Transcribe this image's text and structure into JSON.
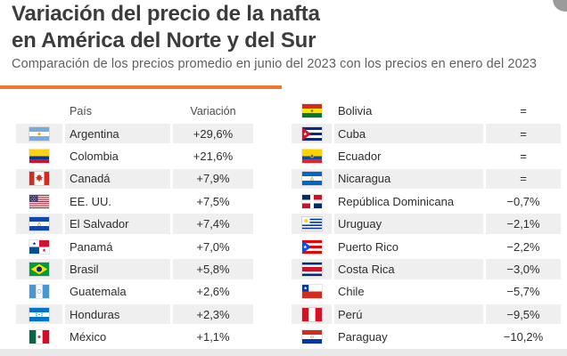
{
  "page": {
    "title_line1": "Variación del precio de la nafta",
    "title_line2": "en América del Norte y del Sur",
    "subtitle": "Comparación de los precios promedio en junio del 2023 con los precios en enero del 2023",
    "accent_color": "#F0772E"
  },
  "tables": {
    "left": {
      "columns": {
        "country": "País",
        "variation": "Variación"
      },
      "rows": [
        {
          "country": "Argentina",
          "variation": "+29,6%",
          "flag": "argentina"
        },
        {
          "country": "Colombia",
          "variation": "+21,6%",
          "flag": "colombia"
        },
        {
          "country": "Canadá",
          "variation": "+7,9%",
          "flag": "canada"
        },
        {
          "country": "EE. UU.",
          "variation": "+7,5%",
          "flag": "usa"
        },
        {
          "country": "El Salvador",
          "variation": "+7,4%",
          "flag": "el_salvador"
        },
        {
          "country": "Panamá",
          "variation": "+7,0%",
          "flag": "panama"
        },
        {
          "country": "Brasil",
          "variation": "+5,8%",
          "flag": "brasil"
        },
        {
          "country": "Guatemala",
          "variation": "+2,6%",
          "flag": "guatemala"
        },
        {
          "country": "Honduras",
          "variation": "+2,3%",
          "flag": "honduras"
        },
        {
          "country": "México",
          "variation": "+1,1%",
          "flag": "mexico"
        }
      ]
    },
    "right": {
      "rows": [
        {
          "country": "Bolivia",
          "variation": "=",
          "flag": "bolivia"
        },
        {
          "country": "Cuba",
          "variation": "=",
          "flag": "cuba"
        },
        {
          "country": "Ecuador",
          "variation": "=",
          "flag": "ecuador"
        },
        {
          "country": "Nicaragua",
          "variation": "=",
          "flag": "nicaragua"
        },
        {
          "country": "República Dominicana",
          "variation": "−0,7%",
          "flag": "dominicana"
        },
        {
          "country": "Uruguay",
          "variation": "−2,1%",
          "flag": "uruguay"
        },
        {
          "country": "Puerto Rico",
          "variation": "−2,2%",
          "flag": "puerto_rico"
        },
        {
          "country": "Costa Rica",
          "variation": "−3,0%",
          "flag": "costa_rica"
        },
        {
          "country": "Chile",
          "variation": "−5,7%",
          "flag": "chile"
        },
        {
          "country": "Perú",
          "variation": "−9,5%",
          "flag": "peru"
        },
        {
          "country": "Paraguay",
          "variation": "−10,2%",
          "flag": "paraguay"
        }
      ]
    }
  },
  "chart_data": {
    "type": "table",
    "title": "Variación del precio de la nafta en América del Norte y del Sur",
    "subtitle": "Comparación de los precios promedio en junio del 2023 con los precios en enero del 2023",
    "columns": [
      "País",
      "Variación"
    ],
    "unit": "%",
    "rows": [
      {
        "country": "Argentina",
        "label": "+29,6%",
        "value": 29.6
      },
      {
        "country": "Colombia",
        "label": "+21,6%",
        "value": 21.6
      },
      {
        "country": "Canadá",
        "label": "+7,9%",
        "value": 7.9
      },
      {
        "country": "EE. UU.",
        "label": "+7,5%",
        "value": 7.5
      },
      {
        "country": "El Salvador",
        "label": "+7,4%",
        "value": 7.4
      },
      {
        "country": "Panamá",
        "label": "+7,0%",
        "value": 7.0
      },
      {
        "country": "Brasil",
        "label": "+5,8%",
        "value": 5.8
      },
      {
        "country": "Guatemala",
        "label": "+2,6%",
        "value": 2.6
      },
      {
        "country": "Honduras",
        "label": "+2,3%",
        "value": 2.3
      },
      {
        "country": "México",
        "label": "+1,1%",
        "value": 1.1
      },
      {
        "country": "Bolivia",
        "label": "=",
        "value": 0
      },
      {
        "country": "Cuba",
        "label": "=",
        "value": 0
      },
      {
        "country": "Ecuador",
        "label": "=",
        "value": 0
      },
      {
        "country": "Nicaragua",
        "label": "=",
        "value": 0
      },
      {
        "country": "República Dominicana",
        "label": "−0,7%",
        "value": -0.7
      },
      {
        "country": "Uruguay",
        "label": "−2,1%",
        "value": -2.1
      },
      {
        "country": "Puerto Rico",
        "label": "−2,2%",
        "value": -2.2
      },
      {
        "country": "Costa Rica",
        "label": "−3,0%",
        "value": -3.0
      },
      {
        "country": "Chile",
        "label": "−5,7%",
        "value": -5.7
      },
      {
        "country": "Perú",
        "label": "−9,5%",
        "value": -9.5
      },
      {
        "country": "Paraguay",
        "label": "−10,2%",
        "value": -10.2
      }
    ]
  }
}
